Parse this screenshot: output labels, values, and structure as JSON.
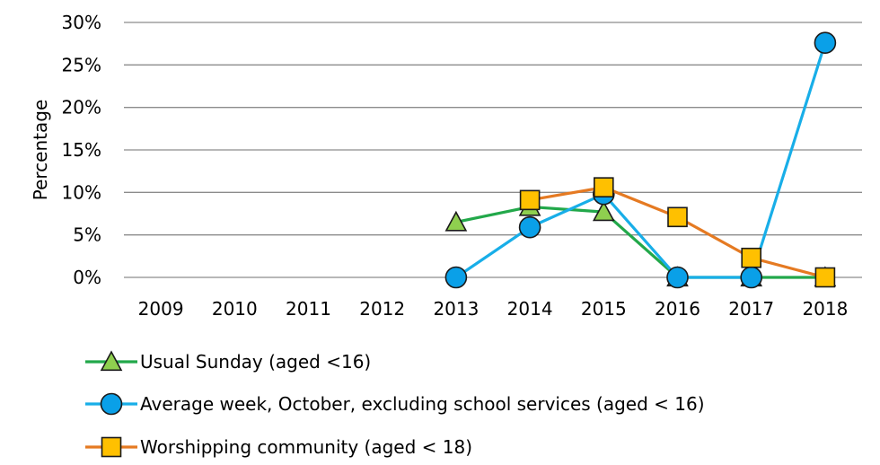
{
  "chart_data": {
    "type": "line",
    "title": "",
    "xlabel": "",
    "ylabel": "Percentage",
    "x": [
      "2009",
      "2010",
      "2011",
      "2012",
      "2013",
      "2014",
      "2015",
      "2016",
      "2017",
      "2018"
    ],
    "yticks": [
      "0%",
      "5%",
      "10%",
      "15%",
      "20%",
      "25%",
      "30%"
    ],
    "ylim": [
      0,
      30
    ],
    "grid": true,
    "legend_position": "bottom",
    "series": [
      {
        "name": "Usual Sunday (aged <16)",
        "color": "#22a84a",
        "marker_color": "#8fcf4f",
        "marker": "triangle",
        "values": [
          null,
          null,
          null,
          null,
          6.5,
          8.3,
          7.7,
          0,
          0,
          0
        ]
      },
      {
        "name": "Average week, October, excluding school services (aged < 16)",
        "color": "#18aee8",
        "marker_color": "#0aa0e8",
        "marker": "circle",
        "values": [
          null,
          null,
          null,
          null,
          0,
          5.9,
          9.8,
          0,
          0,
          27.6
        ]
      },
      {
        "name": "Worshipping community (aged < 18)",
        "color": "#e57a22",
        "marker_color": "#ffc000",
        "marker": "square",
        "values": [
          null,
          null,
          null,
          null,
          null,
          9.1,
          10.6,
          7.1,
          2.3,
          0
        ]
      }
    ]
  }
}
